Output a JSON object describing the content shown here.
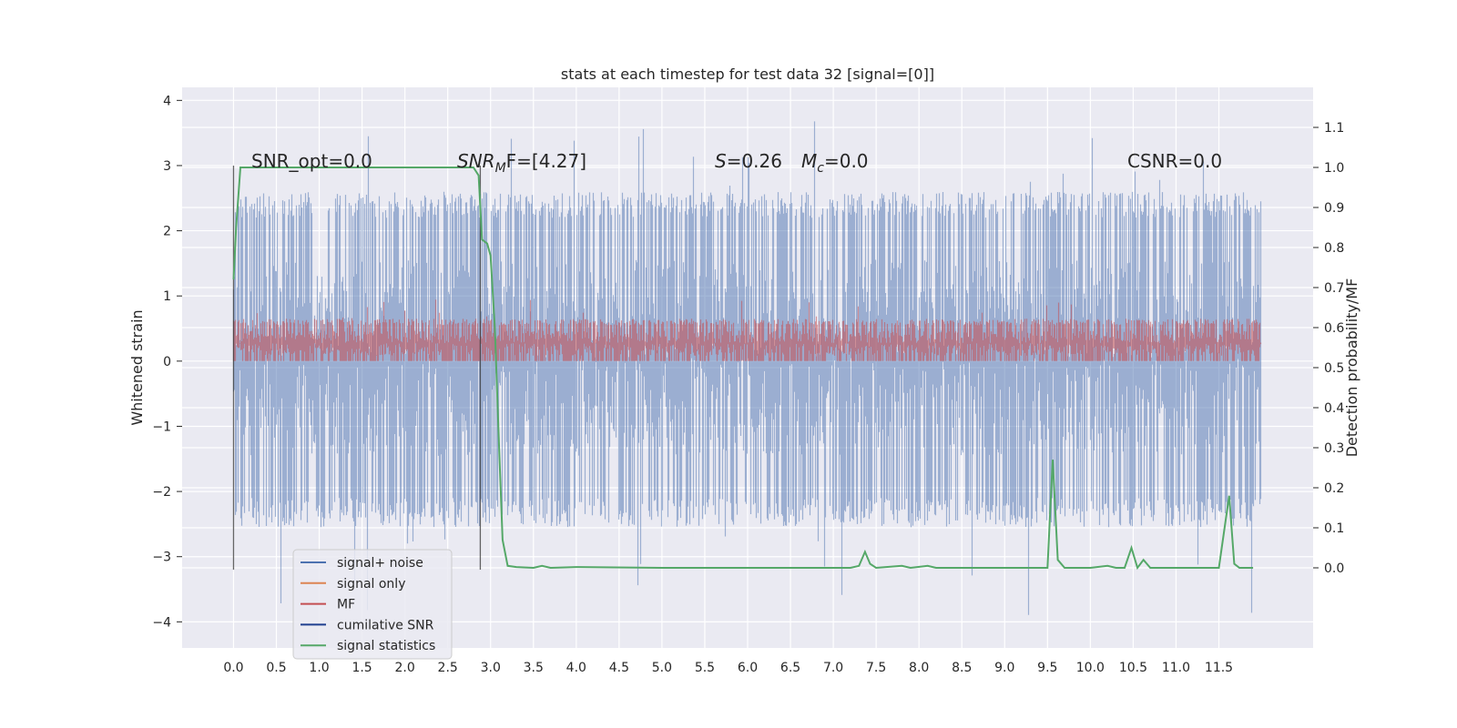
{
  "chart_data": {
    "type": "line",
    "title": "stats at each timestep for test data 32 [signal=[0]]",
    "ylabel_left": "Whitened strain",
    "ylabel_right": "Detection probability/MF",
    "xlim": [
      -0.6,
      12.6
    ],
    "ylim_left": [
      -4.4,
      4.2
    ],
    "ylim_right": [
      -0.2,
      1.2
    ],
    "x_ticks": [
      "0.0",
      "0.5",
      "1.0",
      "1.5",
      "2.0",
      "2.5",
      "3.0",
      "3.5",
      "4.0",
      "4.5",
      "5.0",
      "5.5",
      "6.0",
      "6.5",
      "7.0",
      "7.5",
      "8.0",
      "8.5",
      "9.0",
      "9.5",
      "10.0",
      "10.5",
      "11.0",
      "11.5"
    ],
    "y_ticks_left": [
      "4",
      "3",
      "2",
      "1",
      "0",
      "−1",
      "−2",
      "−3",
      "−4"
    ],
    "y_ticks_right": [
      "1.1",
      "1.0",
      "0.9",
      "0.8",
      "0.7",
      "0.6",
      "0.5",
      "0.4",
      "0.3",
      "0.2",
      "0.1",
      "0.0"
    ],
    "grid": true,
    "legend": {
      "position": "lower-left",
      "entries": [
        {
          "label": "signal+ noise",
          "color": "#4c72b0"
        },
        {
          "label": "signal only",
          "color": "#dd8452"
        },
        {
          "label": "MF",
          "color": "#c44e52"
        },
        {
          "label": "cumilative SNR",
          "color": "#1f3f8f"
        },
        {
          "label": "signal statistics",
          "color": "#55a868"
        }
      ]
    },
    "annotations": {
      "snr_opt": "SNR_opt=0.0",
      "snr_mf_prefix": "SNR",
      "snr_mf_sub": "M",
      "snr_mf_suffix": "F=[4.27]",
      "s_stat_symbol": "S",
      "s_stat_value": "=0.26",
      "mc_symbol": "M",
      "mc_sub": "c",
      "mc_value": "=0.0",
      "csnr": "CSNR=0.0"
    },
    "vertical_lines_x": [
      0.0,
      2.88
    ],
    "series": [
      {
        "name": "signal statistics",
        "axis": "right",
        "color": "#55a868",
        "x": [
          0.0,
          0.03,
          0.08,
          0.2,
          1.0,
          2.0,
          2.62,
          2.72,
          2.8,
          2.86,
          2.9,
          2.96,
          3.0,
          3.05,
          3.1,
          3.14,
          3.2,
          3.3,
          3.5,
          3.6,
          3.7,
          4.0,
          5.0,
          6.0,
          7.0,
          7.2,
          7.3,
          7.37,
          7.43,
          7.5,
          7.8,
          7.9,
          8.1,
          8.2,
          9.0,
          9.5,
          9.56,
          9.62,
          9.7,
          10.0,
          10.2,
          10.3,
          10.4,
          10.48,
          10.55,
          10.62,
          10.7,
          11.0,
          11.5,
          11.62,
          11.68,
          11.74,
          11.8,
          11.9
        ],
        "y": [
          0.72,
          0.85,
          1.0,
          1.0,
          1.0,
          1.0,
          1.0,
          1.0,
          1.0,
          0.98,
          0.82,
          0.81,
          0.78,
          0.6,
          0.3,
          0.07,
          0.005,
          0.002,
          0.0,
          0.005,
          0.0,
          0.002,
          0.0,
          0.0,
          0.0,
          0.0,
          0.005,
          0.04,
          0.01,
          0.0,
          0.005,
          0.0,
          0.005,
          0.0,
          0.0,
          0.0,
          0.27,
          0.02,
          0.0,
          0.0,
          0.005,
          0.0,
          0.0,
          0.05,
          0.0,
          0.02,
          0.0,
          0.0,
          0.0,
          0.18,
          0.01,
          0.0,
          0.0,
          0.0
        ]
      }
    ],
    "band_series": [
      {
        "name": "signal+ noise",
        "axis": "left",
        "color": "#4c72b0",
        "opacity": 0.5,
        "x_range": [
          0.0,
          11.99
        ],
        "envelope": [
          -2.1,
          2.2
        ],
        "spike_range": [
          -3.9,
          3.8
        ]
      },
      {
        "name": "MF",
        "axis": "left",
        "color": "#c44e52",
        "opacity": 0.55,
        "x_range": [
          0.0,
          11.99
        ],
        "envelope": [
          0.0,
          0.55
        ],
        "spike_range": [
          0.0,
          0.95
        ]
      }
    ]
  }
}
